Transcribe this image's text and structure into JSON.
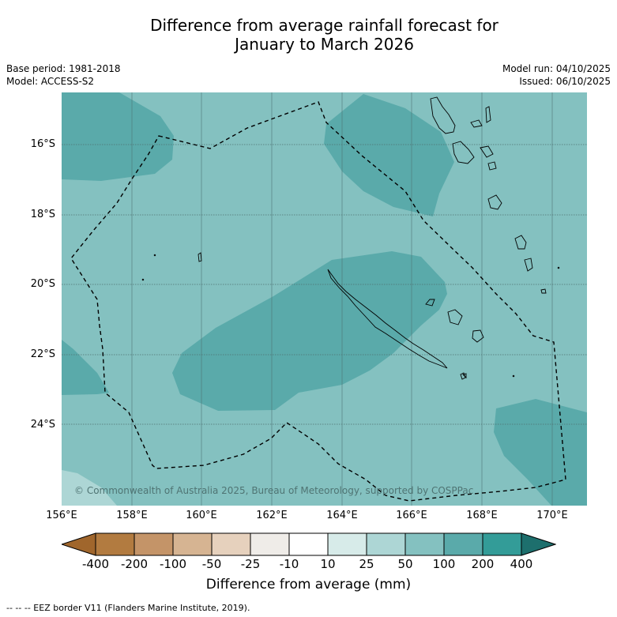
{
  "title_line1": "Difference from average rainfall forecast for",
  "title_line2": "January to March 2026",
  "meta": {
    "base_period": "Base period: 1981-2018",
    "model": "Model: ACCESS-S2",
    "model_run": "Model run: 04/10/2025",
    "issued": "Issued: 06/10/2025"
  },
  "map": {
    "latitudes": [
      "16°S",
      "18°S",
      "20°S",
      "22°S",
      "24°S"
    ],
    "longitudes": [
      "156°E",
      "158°E",
      "160°E",
      "162°E",
      "164°E",
      "166°E",
      "168°E",
      "170°E"
    ],
    "copyright": "© Commonwealth of Australia 2025, Bureau of Meteorology, supported by COSPPac",
    "colors": {
      "band_10_25": "#d7ebe9",
      "band_25_50": "#add6d5",
      "band_50_100": "#84c1c0",
      "band_100_200": "#5aaaaa",
      "grid": "#4d7170"
    }
  },
  "colorbar": {
    "ticks": [
      "-400",
      "-200",
      "-100",
      "-50",
      "-25",
      "-10",
      "10",
      "25",
      "50",
      "100",
      "200",
      "400"
    ],
    "colors": [
      "#a0662c",
      "#b27b40",
      "#c49468",
      "#d6b492",
      "#e6d1bd",
      "#efece8",
      "#ffffff",
      "#d7ebe9",
      "#add6d5",
      "#84c1c0",
      "#5aaaaa",
      "#339c98",
      "#1d6f6d"
    ],
    "title": "Difference from average (mm)"
  },
  "legend_eez": "-- -- -- EEZ border V11 (Flanders Marine Institute, 2019)."
}
